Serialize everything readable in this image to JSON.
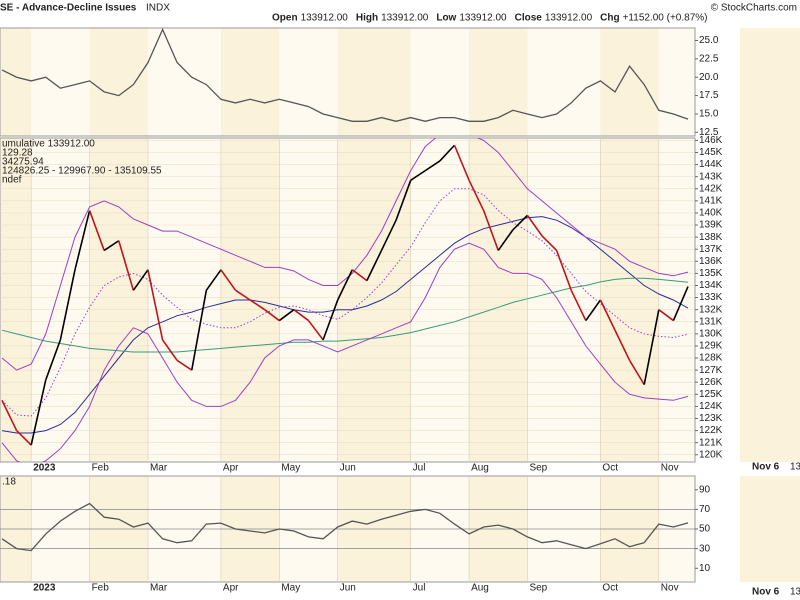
{
  "header": {
    "title": "SE - Advance-Decline Issues",
    "symbol": "INDX",
    "ohlc": [
      {
        "label": "Open",
        "value": "133912.00"
      },
      {
        "label": "High",
        "value": "133912.00"
      },
      {
        "label": "Low",
        "value": "133912.00"
      },
      {
        "label": "Close",
        "value": "133912.00"
      },
      {
        "label": "Chg",
        "value": "+1152.00 (+0.87%)"
      }
    ],
    "credit": "© StockCharts.com"
  },
  "side_panel": {
    "labels": [
      "Nov 6",
      "13"
    ]
  },
  "background_colors": [
    "#fbf2dc",
    "#fefaf0"
  ],
  "chart_data": [
    {
      "type": "line",
      "color": "#555555",
      "ylim": [
        12,
        26.7
      ],
      "yticks": [
        12.5,
        {
          "value": 15,
          "label": "15.0"
        },
        {
          "value": 17.5,
          "label": "17.5"
        },
        {
          "value": 20,
          "label": "20.0"
        },
        {
          "value": 22.5,
          "label": "22.5"
        },
        {
          "value": 25,
          "label": "25.0"
        }
      ],
      "values": [
        21,
        20,
        19.5,
        20,
        18.5,
        19,
        19.5,
        18,
        17.5,
        19,
        22,
        26.5,
        22,
        20,
        19,
        17,
        16.5,
        17,
        16.5,
        17,
        16.5,
        16,
        15,
        14.5,
        14,
        14,
        14.5,
        14,
        14.5,
        14,
        14.5,
        14.5,
        14,
        14,
        14.5,
        15.5,
        15,
        14.5,
        15,
        16.5,
        18.5,
        19.5,
        18,
        21.5,
        19,
        15.5,
        15,
        14.3
      ]
    },
    {
      "type": "price",
      "ylim": [
        119400,
        146200
      ],
      "grid": true,
      "legend_extra": "ndef",
      "categories": [
        null,
        null,
        "2023",
        null,
        null,
        null,
        "Feb",
        null,
        null,
        null,
        "Mar",
        null,
        null,
        null,
        null,
        "Apr",
        null,
        null,
        null,
        "May",
        null,
        null,
        null,
        "Jun",
        null,
        null,
        null,
        null,
        "Jul",
        null,
        null,
        null,
        "Aug",
        null,
        null,
        null,
        "Sep",
        null,
        null,
        null,
        null,
        "Oct",
        null,
        null,
        null,
        "Nov",
        null,
        null
      ],
      "yticks": [
        {
          "value": 120000,
          "label": "120K"
        },
        {
          "value": 121000,
          "label": "121K"
        },
        {
          "value": 122000,
          "label": "122K"
        },
        {
          "value": 123000,
          "label": "123K"
        },
        {
          "value": 124000,
          "label": "124K"
        },
        {
          "value": 125000,
          "label": "125K"
        },
        {
          "value": 126000,
          "label": "126K"
        },
        {
          "value": 127000,
          "label": "127K"
        },
        {
          "value": 128000,
          "label": "128K"
        },
        {
          "value": 129000,
          "label": "129K"
        },
        {
          "value": 130000,
          "label": "130K"
        },
        {
          "value": 131000,
          "label": "131K"
        },
        {
          "value": 132000,
          "label": "132K"
        },
        {
          "value": 133000,
          "label": "133K"
        },
        {
          "value": 134000,
          "label": "134K"
        },
        {
          "value": 135000,
          "label": "135K"
        },
        {
          "value": 136000,
          "label": "136K"
        },
        {
          "value": 137000,
          "label": "137K"
        },
        {
          "value": 138000,
          "label": "138K"
        },
        {
          "value": 139000,
          "label": "139K"
        },
        {
          "value": 140000,
          "label": "140K"
        },
        {
          "value": 141000,
          "label": "141K"
        },
        {
          "value": 142000,
          "label": "142K"
        },
        {
          "value": 143000,
          "label": "143K"
        },
        {
          "value": 144000,
          "label": "144K"
        },
        {
          "value": 145000,
          "label": "145K"
        },
        {
          "value": 146000,
          "label": "146K"
        }
      ],
      "series": [
        {
          "name": "umulative 133912.00",
          "color": "#000000",
          "down_color": "#c0141c",
          "values": [
            124500,
            122000,
            120800,
            126200,
            129500,
            135300,
            140200,
            136900,
            137700,
            133600,
            135300,
            129500,
            127800,
            127000,
            133600,
            135300,
            133600,
            132800,
            132000,
            131100,
            132000,
            131100,
            129500,
            132800,
            135300,
            134400,
            136900,
            139400,
            142700,
            143500,
            144300,
            145600,
            142700,
            140200,
            136900,
            138600,
            139800,
            138100,
            136900,
            133600,
            131100,
            132800,
            130300,
            127800,
            125800,
            132000,
            131100,
            133912
          ]
        },
        {
          "name": "129.28",
          "color": "#2b2b9a",
          "values": [
            122000,
            121800,
            121800,
            122000,
            122500,
            123500,
            125000,
            126500,
            128000,
            129500,
            130500,
            131000,
            131500,
            131800,
            132200,
            132500,
            132800,
            132800,
            132600,
            132300,
            132000,
            131800,
            131800,
            132000,
            132000,
            132300,
            132800,
            133500,
            134500,
            135500,
            136500,
            137500,
            138200,
            138700,
            139000,
            139300,
            139600,
            139700,
            139400,
            138800,
            138000,
            137000,
            136000,
            135000,
            134000,
            133300,
            132800,
            132129.28
          ]
        },
        {
          "name": "34275.94",
          "color": "#3a9a7a",
          "values": [
            130300,
            130000,
            129700,
            129400,
            129200,
            129000,
            128800,
            128700,
            128600,
            128500,
            128500,
            128500,
            128500,
            128600,
            128700,
            128800,
            128900,
            129000,
            129100,
            129200,
            129300,
            129300,
            129400,
            129400,
            129500,
            129600,
            129700,
            129900,
            130100,
            130400,
            130700,
            131000,
            131400,
            131800,
            132200,
            132600,
            132900,
            133200,
            133500,
            133800,
            134000,
            134300,
            134500,
            134600,
            134600,
            134500,
            134400,
            134275.94
          ]
        },
        {
          "name": "124826.25 - 129967.90 - 135109.55",
          "color": "#9b3fc4",
          "values": [
            124500,
            123300,
            123200,
            124700,
            127200,
            130000,
            132200,
            134000,
            134700,
            135000,
            134500,
            133200,
            132200,
            131200,
            130800,
            130500,
            130500,
            131000,
            131700,
            132200,
            132300,
            132000,
            131500,
            131200,
            132000,
            133000,
            134200,
            135700,
            137200,
            139200,
            141000,
            142000,
            142000,
            141500,
            140200,
            139200,
            138500,
            137700,
            136500,
            135000,
            133500,
            132500,
            131500,
            130500,
            130000,
            129800,
            129700,
            129967.9
          ],
          "upper": [
            128000,
            127000,
            127500,
            130000,
            134000,
            138000,
            140500,
            141000,
            140500,
            139500,
            139000,
            138500,
            138500,
            138000,
            137500,
            137000,
            136500,
            136000,
            135500,
            135500,
            135200,
            134500,
            134000,
            134000,
            135000,
            136500,
            138500,
            141000,
            143500,
            145500,
            146500,
            147000,
            146500,
            146000,
            145000,
            143500,
            142000,
            141000,
            140000,
            139000,
            138000,
            137500,
            137000,
            136000,
            135500,
            135000,
            134800,
            135109.55
          ],
          "lower": [
            121000,
            119500,
            119000,
            119500,
            120500,
            122000,
            124000,
            127000,
            129000,
            130500,
            130000,
            128000,
            126000,
            124500,
            124000,
            124000,
            124500,
            126000,
            128000,
            129000,
            129500,
            129500,
            129000,
            128500,
            129000,
            129500,
            130000,
            130500,
            131000,
            133000,
            135500,
            137000,
            137500,
            137000,
            135500,
            135000,
            135000,
            134500,
            133000,
            131000,
            129000,
            127500,
            126000,
            125000,
            124700,
            124600,
            124500,
            124826.25
          ]
        }
      ]
    },
    {
      "type": "line",
      "name": ".18",
      "color": "#555555",
      "ylim": [
        -4,
        104
      ],
      "yticks": [
        10,
        30,
        50,
        70,
        90
      ],
      "reference_lines": [
        30,
        50,
        70
      ],
      "categories": [
        null,
        null,
        "2023",
        null,
        null,
        null,
        "Feb",
        null,
        null,
        null,
        "Mar",
        null,
        null,
        null,
        null,
        "Apr",
        null,
        null,
        null,
        "May",
        null,
        null,
        null,
        "Jun",
        null,
        null,
        null,
        null,
        "Jul",
        null,
        null,
        null,
        "Aug",
        null,
        null,
        null,
        "Sep",
        null,
        null,
        null,
        null,
        "Oct",
        null,
        null,
        null,
        "Nov",
        null,
        null
      ],
      "values": [
        40,
        30,
        28,
        45,
        58,
        68,
        76,
        62,
        60,
        52,
        56,
        40,
        36,
        38,
        55,
        56,
        50,
        48,
        46,
        50,
        48,
        42,
        40,
        52,
        58,
        55,
        60,
        64,
        68,
        70,
        66,
        55,
        45,
        52,
        54,
        50,
        42,
        36,
        38,
        34,
        30,
        35,
        40,
        32,
        36,
        55,
        52,
        56.18
      ]
    }
  ]
}
